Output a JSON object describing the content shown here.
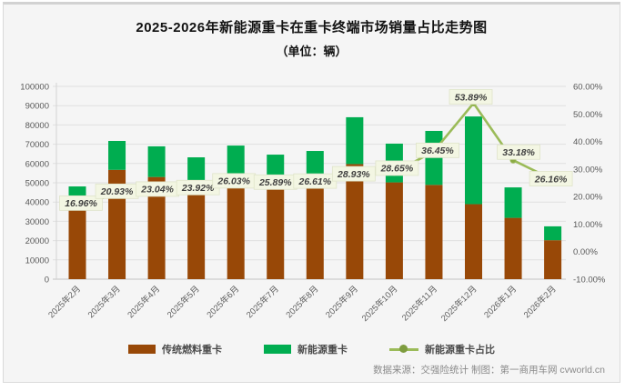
{
  "title": {
    "line1": "2025-2026年新能源重卡在重卡终端市场销量占比走势图",
    "line2": "（单位：辆）"
  },
  "chart_data": {
    "type": "bar",
    "subtype": "stacked-bar-with-percentage-line",
    "title": "2025-2026年新能源重卡在重卡终端市场销量占比走势图（单位：辆）",
    "categories": [
      "2025年2月",
      "2025年3月",
      "2025年4月",
      "2025年5月",
      "2025年6月",
      "2025年7月",
      "2025年8月",
      "2025年9月",
      "2025年10月",
      "2025年11月",
      "2025年12月",
      "2026年1月",
      "2026年2月"
    ],
    "series": [
      {
        "name": "传统燃料重卡",
        "type": "bar",
        "stack": "total",
        "color": "#984807",
        "values": [
          39900,
          56700,
          53000,
          48100,
          51300,
          47900,
          48800,
          59700,
          50200,
          48900,
          38900,
          31800,
          20200
        ]
      },
      {
        "name": "新能源重卡",
        "type": "bar",
        "stack": "total",
        "color": "#00AD50",
        "values": [
          8200,
          15000,
          15900,
          15100,
          18000,
          16700,
          17700,
          24300,
          20100,
          28000,
          45500,
          15800,
          7200
        ]
      },
      {
        "name": "新能源重卡占比",
        "type": "line",
        "axis": "right",
        "color": "#9BBB59",
        "marker_color": "#8CAB45",
        "values": [
          16.96,
          20.93,
          23.04,
          23.92,
          26.03,
          25.89,
          26.61,
          28.93,
          28.65,
          36.45,
          53.89,
          33.18,
          26.16
        ],
        "point_labels": [
          "16.96%",
          "20.93%",
          "23.04%",
          "23.92%",
          "26.03%",
          "25.89%",
          "26.61%",
          "28.93%",
          "28.65%",
          "36.45%",
          "53.89%",
          "33.18%",
          "26.16%"
        ]
      }
    ],
    "left_axis": {
      "min": 0,
      "max": 100000,
      "step": 10000,
      "tick_labels": [
        "0",
        "10000",
        "20000",
        "30000",
        "40000",
        "50000",
        "60000",
        "70000",
        "80000",
        "90000",
        "100000"
      ]
    },
    "right_axis": {
      "min": -10,
      "max": 60,
      "step": 10,
      "tick_labels": [
        "-10.00%",
        "0.00%",
        "10.00%",
        "20.00%",
        "30.00%",
        "40.00%",
        "50.00%",
        "60.00%"
      ]
    },
    "grid": true,
    "legend_position": "bottom",
    "colors": {
      "label_box_bg": "#F3F6E3",
      "label_box_border": "#DFE4C9",
      "label_text": "#3F3F3F",
      "grid_line": "#E0E0E0",
      "axis_text": "#595959",
      "plot_bg": "#F5F5F5"
    }
  },
  "legend": {
    "items": [
      {
        "label": "传统燃料重卡",
        "color": "#984807",
        "marker": "bar"
      },
      {
        "label": "新能源重卡",
        "color": "#00AD50",
        "marker": "bar"
      },
      {
        "label": "新能源重卡占比",
        "color": "#9BBB59",
        "marker": "line"
      }
    ]
  },
  "footer": {
    "source": "数据来源：交强险统计 制图：第一商用车网 cvworld.cn"
  }
}
